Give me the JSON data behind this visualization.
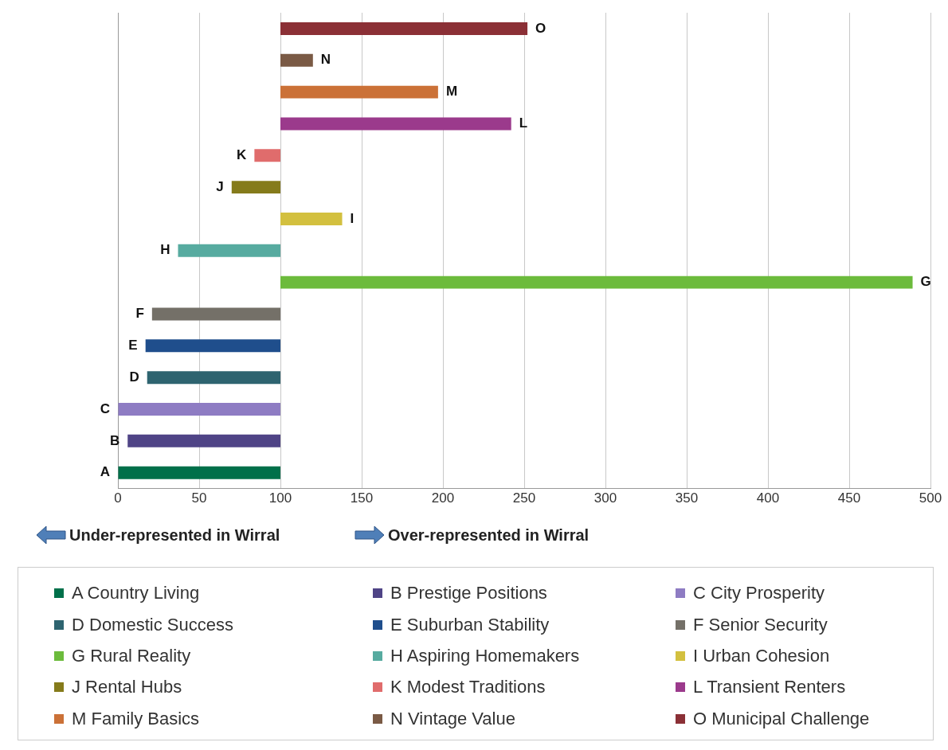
{
  "chart_data": {
    "type": "bar",
    "orientation": "horizontal",
    "categories": [
      "O",
      "N",
      "M",
      "L",
      "K",
      "J",
      "I",
      "H",
      "G",
      "F",
      "E",
      "D",
      "C",
      "B",
      "A"
    ],
    "series": [
      {
        "name": "A Country Living",
        "color": "#00704a",
        "base": [
          null,
          null,
          null,
          null,
          null,
          null,
          null,
          null,
          null,
          null,
          null,
          null,
          null,
          null,
          100
        ],
        "values": [
          null,
          null,
          null,
          null,
          null,
          null,
          null,
          null,
          null,
          null,
          null,
          null,
          null,
          null,
          -100
        ]
      },
      {
        "name": "B Prestige Positions",
        "color": "#4f4486",
        "base": [
          null,
          null,
          null,
          null,
          null,
          null,
          null,
          null,
          null,
          null,
          null,
          null,
          null,
          100,
          null
        ],
        "values": [
          null,
          null,
          null,
          null,
          null,
          null,
          null,
          null,
          null,
          null,
          null,
          null,
          null,
          -94,
          null
        ]
      },
      {
        "name": "C City Prosperity",
        "color": "#8e7cc3",
        "base": [
          null,
          null,
          null,
          null,
          null,
          null,
          null,
          null,
          null,
          null,
          null,
          null,
          100,
          null,
          null
        ],
        "values": [
          null,
          null,
          null,
          null,
          null,
          null,
          null,
          null,
          null,
          null,
          null,
          null,
          -100,
          null,
          null
        ]
      },
      {
        "name": "D Domestic Success",
        "color": "#2e6470",
        "base": [
          null,
          null,
          null,
          null,
          null,
          null,
          null,
          null,
          null,
          null,
          null,
          100,
          null,
          null,
          null
        ],
        "values": [
          null,
          null,
          null,
          null,
          null,
          null,
          null,
          null,
          null,
          null,
          null,
          -82,
          null,
          null,
          null
        ]
      },
      {
        "name": "E Suburban Stability",
        "color": "#1f4e8c",
        "base": [
          null,
          null,
          null,
          null,
          null,
          null,
          null,
          null,
          null,
          null,
          100,
          null,
          null,
          null,
          null
        ],
        "values": [
          null,
          null,
          null,
          null,
          null,
          null,
          null,
          null,
          null,
          null,
          -83,
          null,
          null,
          null,
          null
        ]
      },
      {
        "name": "F Senior Security",
        "color": "#747068",
        "base": [
          null,
          null,
          null,
          null,
          null,
          null,
          null,
          null,
          null,
          100,
          null,
          null,
          null,
          null,
          null
        ],
        "values": [
          null,
          null,
          null,
          null,
          null,
          null,
          null,
          null,
          null,
          -79,
          null,
          null,
          null,
          null,
          null
        ]
      },
      {
        "name": "G Rural Reality",
        "color": "#6cbb3c",
        "base": [
          null,
          null,
          null,
          null,
          null,
          null,
          null,
          null,
          100,
          null,
          null,
          null,
          null,
          null,
          null
        ],
        "values": [
          null,
          null,
          null,
          null,
          null,
          null,
          null,
          null,
          389,
          null,
          null,
          null,
          null,
          null,
          null
        ]
      },
      {
        "name": "H Aspiring Homemakers",
        "color": "#57aba0",
        "base": [
          null,
          null,
          null,
          null,
          null,
          null,
          null,
          100,
          null,
          null,
          null,
          null,
          null,
          null,
          null
        ],
        "values": [
          null,
          null,
          null,
          null,
          null,
          null,
          null,
          -63,
          null,
          null,
          null,
          null,
          null,
          null,
          null
        ]
      },
      {
        "name": "I Urban Cohesion",
        "color": "#d3c03f",
        "base": [
          null,
          null,
          null,
          null,
          null,
          null,
          100,
          null,
          null,
          null,
          null,
          null,
          null,
          null,
          null
        ],
        "values": [
          null,
          null,
          null,
          null,
          null,
          null,
          38,
          null,
          null,
          null,
          null,
          null,
          null,
          null,
          null
        ]
      },
      {
        "name": "J Rental Hubs",
        "color": "#857b1b",
        "base": [
          null,
          null,
          null,
          null,
          null,
          100,
          null,
          null,
          null,
          null,
          null,
          null,
          null,
          null,
          null
        ],
        "values": [
          null,
          null,
          null,
          null,
          null,
          -30,
          null,
          null,
          null,
          null,
          null,
          null,
          null,
          null,
          null
        ]
      },
      {
        "name": "K Modest Traditions",
        "color": "#e06c6c",
        "base": [
          null,
          null,
          null,
          null,
          100,
          null,
          null,
          null,
          null,
          null,
          null,
          null,
          null,
          null,
          null
        ],
        "values": [
          null,
          null,
          null,
          null,
          -16,
          null,
          null,
          null,
          null,
          null,
          null,
          null,
          null,
          null,
          null
        ]
      },
      {
        "name": "L Transient Renters",
        "color": "#9b3a8c",
        "base": [
          null,
          null,
          null,
          100,
          null,
          null,
          null,
          null,
          null,
          null,
          null,
          null,
          null,
          null,
          null
        ],
        "values": [
          null,
          null,
          null,
          142,
          null,
          null,
          null,
          null,
          null,
          null,
          null,
          null,
          null,
          null,
          null
        ]
      },
      {
        "name": "M Family Basics",
        "color": "#cb7137",
        "base": [
          null,
          null,
          100,
          null,
          null,
          null,
          null,
          null,
          null,
          null,
          null,
          null,
          null,
          null,
          null
        ],
        "values": [
          null,
          null,
          97,
          null,
          null,
          null,
          null,
          null,
          null,
          null,
          null,
          null,
          null,
          null,
          null
        ]
      },
      {
        "name": "N Vintage Value",
        "color": "#7a5a45",
        "base": [
          null,
          100,
          null,
          null,
          null,
          null,
          null,
          null,
          null,
          null,
          null,
          null,
          null,
          null,
          null
        ],
        "values": [
          null,
          20,
          null,
          null,
          null,
          null,
          null,
          null,
          null,
          null,
          null,
          null,
          null,
          null,
          null
        ]
      },
      {
        "name": "O Municipal Challenge",
        "color": "#8b3036",
        "base": [
          100,
          null,
          null,
          null,
          null,
          null,
          null,
          null,
          null,
          null,
          null,
          null,
          null,
          null,
          null
        ],
        "values": [
          152,
          null,
          null,
          null,
          null,
          null,
          null,
          null,
          null,
          null,
          null,
          null,
          null,
          null,
          null
        ]
      }
    ],
    "xlim": [
      0,
      500
    ],
    "xticks": [
      0,
      50,
      100,
      150,
      200,
      250,
      300,
      350,
      400,
      450,
      500
    ],
    "grid": "x",
    "tick_labels": "x",
    "legend": "bottom",
    "annotations": [
      "Under-represented in Wirral",
      "Over-represented in Wirral"
    ]
  }
}
